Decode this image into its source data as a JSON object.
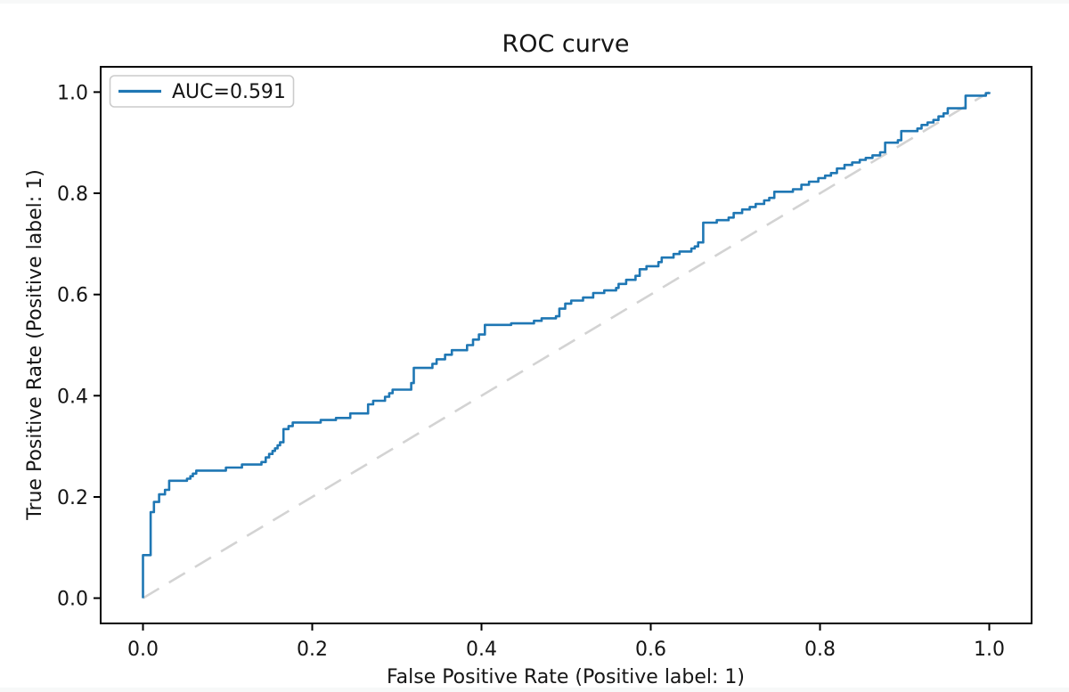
{
  "page": {
    "background": "#ffffff",
    "edge_strip_color": "#f7f8f8"
  },
  "chart_data": {
    "type": "line",
    "subtype": "roc-step-curve",
    "title": "ROC curve",
    "xlabel": "False Positive Rate (Positive label: 1)",
    "ylabel": "True Positive Rate (Positive label: 1)",
    "xlim": [
      -0.05,
      1.05
    ],
    "ylim": [
      -0.05,
      1.05
    ],
    "grid": false,
    "auc": 0.591,
    "x_ticks": {
      "values": [
        0.0,
        0.2,
        0.4,
        0.6,
        0.8,
        1.0
      ],
      "labels": [
        "0.0",
        "0.2",
        "0.4",
        "0.6",
        "0.8",
        "1.0"
      ]
    },
    "y_ticks": {
      "values": [
        0.0,
        0.2,
        0.4,
        0.6,
        0.8,
        1.0
      ],
      "labels": [
        "0.0",
        "0.2",
        "0.4",
        "0.6",
        "0.8",
        "1.0"
      ]
    },
    "legend": {
      "position": "upper-left",
      "entries": [
        {
          "label": "AUC=0.591",
          "color": "#1f77b4",
          "line_style": "solid"
        }
      ]
    },
    "colors": {
      "curve": "#1f77b4",
      "chance_line": "#d3d3d3",
      "spine": "#000000",
      "text": "#151515",
      "legend_border": "#cccccc"
    },
    "series": [
      {
        "name": "roc-curve",
        "draw": "step-after",
        "color": "#1f77b4",
        "line_width": 2.6,
        "points": [
          [
            0.0,
            0.0
          ],
          [
            0.0,
            0.085
          ],
          [
            0.009,
            0.17
          ],
          [
            0.013,
            0.19
          ],
          [
            0.019,
            0.205
          ],
          [
            0.026,
            0.214
          ],
          [
            0.031,
            0.232
          ],
          [
            0.052,
            0.236
          ],
          [
            0.056,
            0.241
          ],
          [
            0.059,
            0.246
          ],
          [
            0.063,
            0.252
          ],
          [
            0.098,
            0.258
          ],
          [
            0.117,
            0.264
          ],
          [
            0.14,
            0.269
          ],
          [
            0.145,
            0.278
          ],
          [
            0.149,
            0.285
          ],
          [
            0.153,
            0.291
          ],
          [
            0.156,
            0.296
          ],
          [
            0.159,
            0.302
          ],
          [
            0.162,
            0.308
          ],
          [
            0.166,
            0.334
          ],
          [
            0.172,
            0.34
          ],
          [
            0.177,
            0.347
          ],
          [
            0.21,
            0.352
          ],
          [
            0.228,
            0.356
          ],
          [
            0.245,
            0.365
          ],
          [
            0.266,
            0.383
          ],
          [
            0.272,
            0.39
          ],
          [
            0.286,
            0.398
          ],
          [
            0.291,
            0.405
          ],
          [
            0.295,
            0.412
          ],
          [
            0.317,
            0.425
          ],
          [
            0.32,
            0.455
          ],
          [
            0.342,
            0.463
          ],
          [
            0.347,
            0.472
          ],
          [
            0.357,
            0.481
          ],
          [
            0.365,
            0.49
          ],
          [
            0.383,
            0.5
          ],
          [
            0.39,
            0.511
          ],
          [
            0.397,
            0.521
          ],
          [
            0.404,
            0.54
          ],
          [
            0.435,
            0.543
          ],
          [
            0.462,
            0.548
          ],
          [
            0.471,
            0.553
          ],
          [
            0.488,
            0.557
          ],
          [
            0.492,
            0.572
          ],
          [
            0.499,
            0.582
          ],
          [
            0.506,
            0.588
          ],
          [
            0.52,
            0.594
          ],
          [
            0.532,
            0.603
          ],
          [
            0.545,
            0.608
          ],
          [
            0.559,
            0.613
          ],
          [
            0.562,
            0.621
          ],
          [
            0.571,
            0.629
          ],
          [
            0.582,
            0.637
          ],
          [
            0.587,
            0.65
          ],
          [
            0.595,
            0.656
          ],
          [
            0.609,
            0.664
          ],
          [
            0.613,
            0.673
          ],
          [
            0.627,
            0.68
          ],
          [
            0.634,
            0.685
          ],
          [
            0.648,
            0.691
          ],
          [
            0.652,
            0.695
          ],
          [
            0.656,
            0.703
          ],
          [
            0.662,
            0.742
          ],
          [
            0.678,
            0.747
          ],
          [
            0.692,
            0.752
          ],
          [
            0.698,
            0.761
          ],
          [
            0.708,
            0.768
          ],
          [
            0.717,
            0.773
          ],
          [
            0.724,
            0.779
          ],
          [
            0.734,
            0.786
          ],
          [
            0.74,
            0.791
          ],
          [
            0.746,
            0.803
          ],
          [
            0.768,
            0.808
          ],
          [
            0.778,
            0.817
          ],
          [
            0.787,
            0.823
          ],
          [
            0.798,
            0.83
          ],
          [
            0.806,
            0.835
          ],
          [
            0.813,
            0.84
          ],
          [
            0.82,
            0.849
          ],
          [
            0.829,
            0.856
          ],
          [
            0.838,
            0.861
          ],
          [
            0.847,
            0.866
          ],
          [
            0.854,
            0.87
          ],
          [
            0.862,
            0.875
          ],
          [
            0.871,
            0.881
          ],
          [
            0.877,
            0.9
          ],
          [
            0.892,
            0.905
          ],
          [
            0.896,
            0.923
          ],
          [
            0.915,
            0.928
          ],
          [
            0.92,
            0.935
          ],
          [
            0.927,
            0.94
          ],
          [
            0.934,
            0.945
          ],
          [
            0.94,
            0.952
          ],
          [
            0.946,
            0.958
          ],
          [
            0.951,
            0.968
          ],
          [
            0.972,
            0.993
          ],
          [
            0.996,
            0.998
          ],
          [
            1.0,
            1.0
          ]
        ]
      },
      {
        "name": "chance-diagonal",
        "draw": "line",
        "style": "dashed",
        "color": "#d3d3d3",
        "line_width": 2.6,
        "dash": [
          21,
          13
        ],
        "points": [
          [
            0.0,
            0.0
          ],
          [
            1.0,
            1.0
          ]
        ]
      }
    ]
  }
}
